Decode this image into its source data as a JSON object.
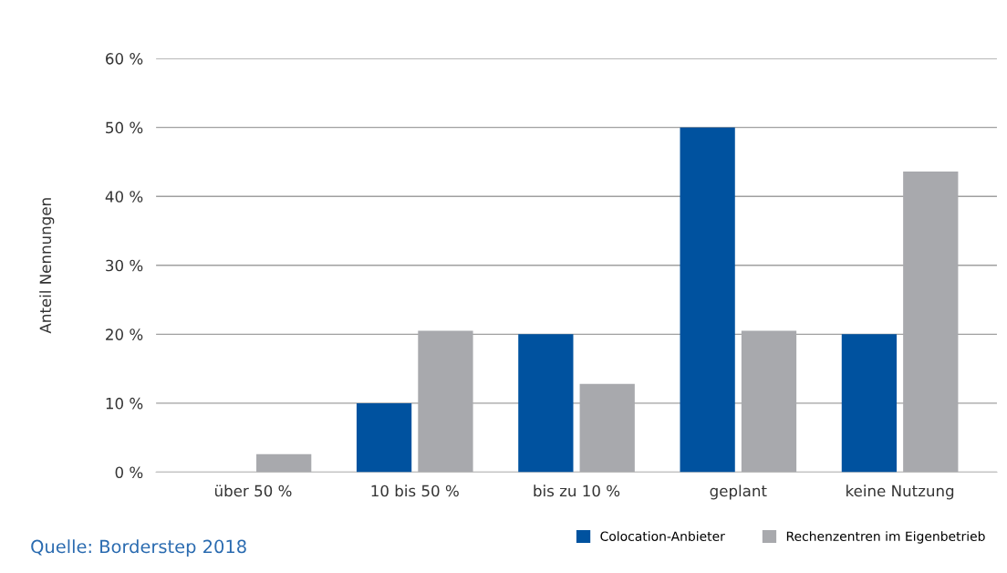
{
  "chart_data": {
    "type": "bar",
    "ylabel": "Anteil Nennungen",
    "categories": [
      "über 50 %",
      "10 bis 50 %",
      "bis zu 10 %",
      "geplant",
      "keine Nutzung"
    ],
    "series": [
      {
        "name": "Colocation-Anbieter",
        "color": "#00529f",
        "values": [
          0,
          10,
          20,
          50,
          20
        ]
      },
      {
        "name": "Rechenzentren im Eigenbetrieb",
        "color": "#a8a9ad",
        "values": [
          2.6,
          20.5,
          12.8,
          20.5,
          43.6
        ]
      }
    ],
    "ylim": [
      0,
      60
    ],
    "yticks": [
      {
        "value": 0,
        "label": "0 %"
      },
      {
        "value": 10,
        "label": "10 %"
      },
      {
        "value": 20,
        "label": "20 %"
      },
      {
        "value": 30,
        "label": "30 %"
      },
      {
        "value": 40,
        "label": "40 %"
      },
      {
        "value": 50,
        "label": "50 %"
      },
      {
        "value": 60,
        "label": "60 %"
      }
    ],
    "grid": "y",
    "legend": "bottom right",
    "annotations": [
      "Quelle: Borderstep 2018"
    ]
  }
}
